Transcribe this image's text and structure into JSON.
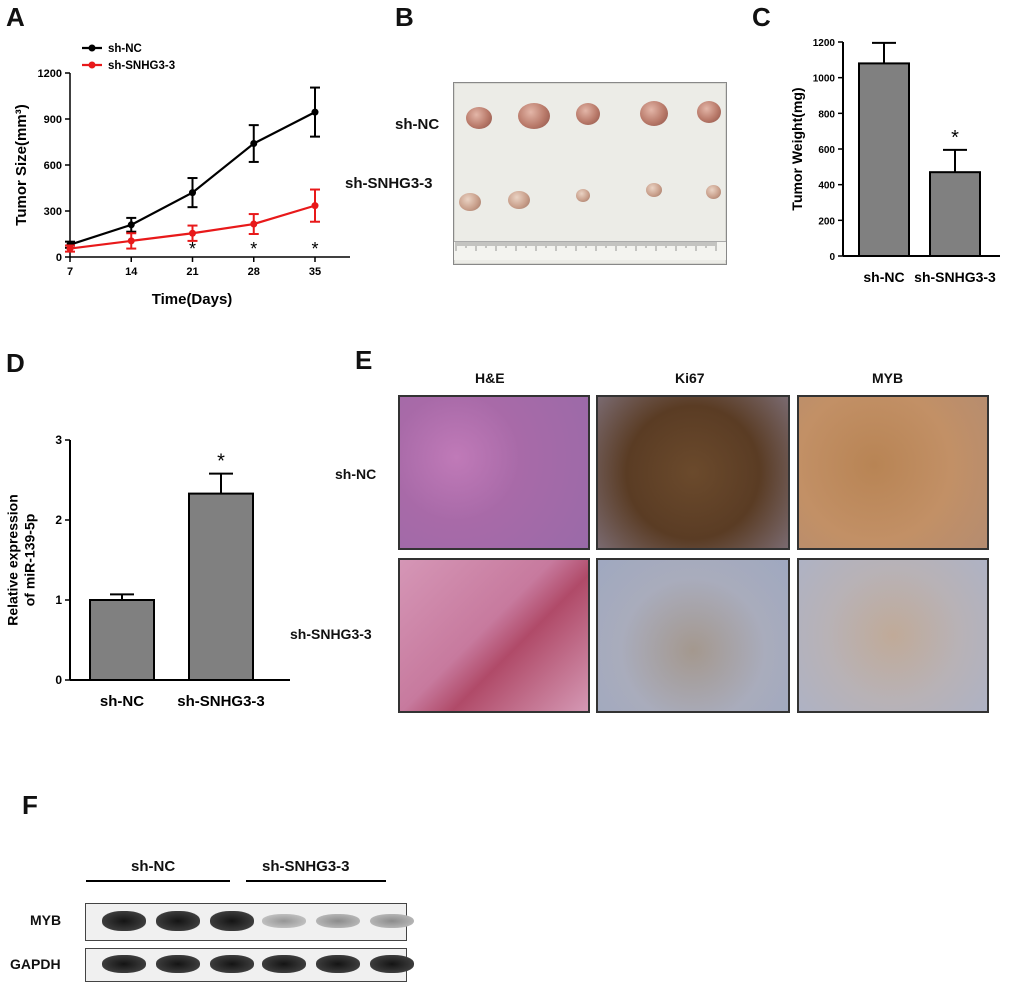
{
  "panels": {
    "a": {
      "letter": "A"
    },
    "b": {
      "letter": "B",
      "rows": [
        "sh-NC",
        "sh-SNHG3-3"
      ]
    },
    "c": {
      "letter": "C"
    },
    "d": {
      "letter": "D"
    },
    "e": {
      "letter": "E",
      "columns": [
        "H&E",
        "Ki67",
        "MYB"
      ],
      "rows": [
        "sh-NC",
        "sh-SNHG3-3"
      ]
    },
    "f": {
      "letter": "F",
      "groups": [
        "sh-NC",
        "sh-SNHG3-3"
      ],
      "rows": [
        "MYB",
        "GAPDH"
      ],
      "band_intensity": {
        "MYB": [
          1,
          1,
          1,
          0.35,
          0.4,
          0.4
        ],
        "GAPDH": [
          1,
          1,
          1,
          1,
          1,
          1
        ]
      }
    }
  },
  "colors": {
    "sh_nc": "#000000",
    "sh_snhg3": "#e8191a",
    "bar": "#808080"
  },
  "chart_data": [
    {
      "type": "line",
      "ylabel": "Tumor Size(mm³)",
      "xlabel": "Time(Days)",
      "x": [
        7,
        14,
        21,
        28,
        35
      ],
      "ylim": [
        0,
        1200
      ],
      "yticks": [
        0,
        300,
        600,
        900,
        1200
      ],
      "legend_position": "top-left",
      "series": [
        {
          "name": "sh-NC",
          "values": [
            80,
            210,
            420,
            740,
            945
          ],
          "errors": [
            20,
            45,
            95,
            120,
            160
          ]
        },
        {
          "name": "sh-SNHG3-3",
          "values": [
            55,
            105,
            155,
            215,
            335
          ],
          "errors": [
            20,
            50,
            50,
            65,
            105
          ]
        }
      ],
      "significance": [
        "",
        "",
        "*",
        "*",
        "*"
      ]
    },
    {
      "type": "bar",
      "ylabel": "Tumor Weight(mg)",
      "categories": [
        "sh-NC",
        "sh-SNHG3-3"
      ],
      "values": [
        1080,
        470
      ],
      "errors": [
        115,
        125
      ],
      "ylim": [
        0,
        1200
      ],
      "yticks": [
        0,
        200,
        400,
        600,
        800,
        1000,
        1200
      ],
      "significance": [
        "",
        "*"
      ]
    },
    {
      "type": "bar",
      "ylabel": "Relative expression of miR-139-5p",
      "categories": [
        "sh-NC",
        "sh-SNHG3-3"
      ],
      "values": [
        1.0,
        2.33
      ],
      "errors": [
        0.07,
        0.25
      ],
      "ylim": [
        0,
        3
      ],
      "yticks": [
        0,
        1,
        2,
        3
      ],
      "significance": [
        "",
        "*"
      ]
    }
  ]
}
